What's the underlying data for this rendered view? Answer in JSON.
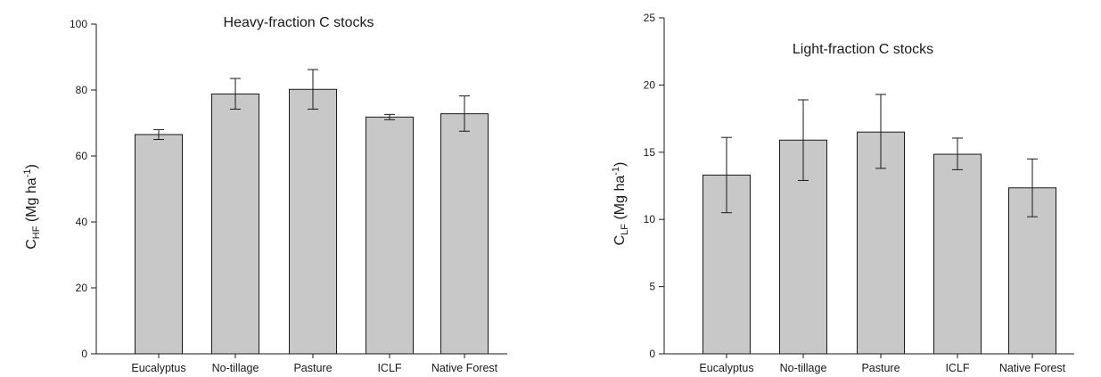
{
  "chart_data": [
    {
      "type": "bar",
      "title": "Heavy-fraction C stocks",
      "ylabel_main": "C",
      "ylabel_sub": "HF",
      "ylabel_unit_pre": " (Mg ha",
      "ylabel_unit_sup": "-1",
      "ylabel_unit_post": ")",
      "categories": [
        "Eucalyptus",
        "No-tillage",
        "Pasture",
        "ICLF",
        "Native Forest"
      ],
      "values": [
        66.5,
        78.8,
        80.2,
        71.8,
        72.8
      ],
      "error_lower": [
        65.0,
        74.2,
        74.2,
        71.0,
        67.5
      ],
      "error_upper": [
        68.0,
        83.5,
        86.2,
        72.6,
        78.2
      ],
      "ylim": [
        0,
        100
      ],
      "yticks": [
        0,
        20,
        40,
        60,
        80,
        100
      ],
      "ytick_labels": [
        "0",
        "20",
        "40",
        "60",
        "80",
        "100"
      ],
      "grid": false
    },
    {
      "type": "bar",
      "title": "Light-fraction C stocks",
      "ylabel_main": "C",
      "ylabel_sub": "LF",
      "ylabel_unit_pre": " (Mg ha",
      "ylabel_unit_sup": "-1",
      "ylabel_unit_post": ")",
      "categories": [
        "Eucalyptus",
        "No-tillage",
        "Pasture",
        "ICLF",
        "Native Forest"
      ],
      "values": [
        13.3,
        15.9,
        16.5,
        14.85,
        12.35
      ],
      "error_lower": [
        10.5,
        12.9,
        13.8,
        13.7,
        10.2
      ],
      "error_upper": [
        16.1,
        18.9,
        19.3,
        16.05,
        14.5
      ],
      "ylim": [
        0,
        25
      ],
      "yticks": [
        0,
        5,
        10,
        15,
        20,
        25
      ],
      "ytick_labels": [
        "0",
        "5",
        "10",
        "15",
        "20",
        "25"
      ],
      "grid": false
    }
  ]
}
